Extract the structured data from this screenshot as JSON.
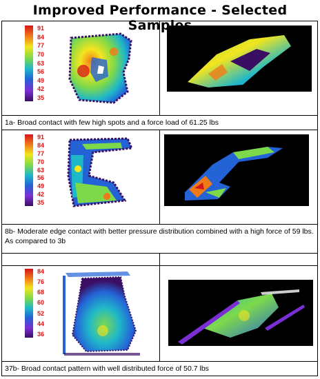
{
  "page": {
    "title": "Improved Performance - Selected Samples"
  },
  "samples": [
    {
      "id": "1a",
      "scale_ticks": [
        "91",
        "84",
        "77",
        "70",
        "63",
        "56",
        "49",
        "42",
        "35"
      ],
      "caption": "1a- Broad contact with few high spots and a force load of 61.25 lbs"
    },
    {
      "id": "8b",
      "scale_ticks": [
        "91",
        "84",
        "77",
        "70",
        "63",
        "56",
        "49",
        "42",
        "35"
      ],
      "caption": "8b- Moderate edge contact with better pressure distribution combined with a high force of 59 lbs. As compared to 3b"
    },
    {
      "id": "37b",
      "scale_ticks": [
        "84",
        "76",
        "68",
        "60",
        "52",
        "44",
        "36"
      ],
      "caption": "37b- Broad contact pattern with well distributed force of 50.7 lbs"
    }
  ],
  "colors": {
    "scale_text": "#dd1111",
    "plot_background": "#000000",
    "heat_high": "#d4141b",
    "heat_mid": "#f3e51f",
    "heat_low": "#3a0f63"
  }
}
